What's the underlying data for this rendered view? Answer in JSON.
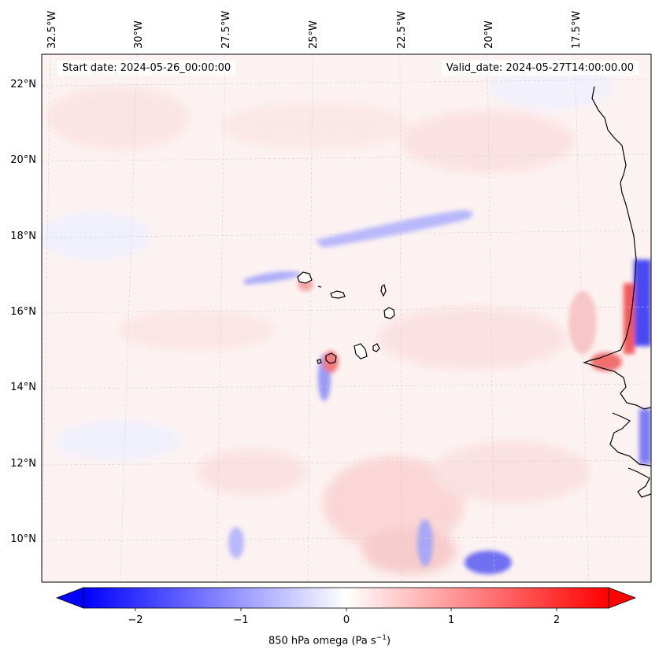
{
  "header": {
    "start_date": "Start date: 2024-05-26_00:00:00",
    "valid_date": "Valid_date: 2024-05-27T14:00:00.00"
  },
  "map": {
    "longitude_labels": [
      "32.5°W",
      "30°W",
      "27.5°W",
      "25°W",
      "22.5°W",
      "20°W",
      "17.5°W"
    ],
    "latitude_labels": [
      "22°N",
      "20°N",
      "18°N",
      "16°N",
      "14°N",
      "12°N",
      "10°N"
    ],
    "gridlines": true,
    "field": "850 hPa vertical velocity (omega) shaded, red positive, blue negative",
    "colors": {
      "positive": "#ff0000",
      "negative": "#0000ff",
      "zero": "#ffffff",
      "coast": "#000000"
    }
  },
  "colorbar": {
    "ticks": [
      "−2",
      "−1",
      "0",
      "1",
      "2"
    ],
    "range": [
      -2.6,
      2.6
    ],
    "label_text": "850 hPa omega (Pa s",
    "label_exp": "−1",
    "label_close": ")"
  }
}
